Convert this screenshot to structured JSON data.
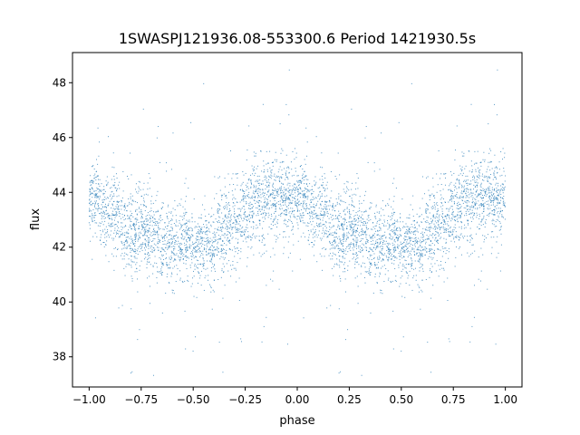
{
  "chart_data": {
    "type": "scatter",
    "title": "1SWASPJ121936.08-553300.6 Period 1421930.5s",
    "xlabel": "phase",
    "ylabel": "flux",
    "xlim": [
      -1.08,
      1.08
    ],
    "ylim": [
      36.9,
      49.1
    ],
    "xticks": [
      -1.0,
      -0.75,
      -0.5,
      -0.25,
      0.0,
      0.25,
      0.5,
      0.75,
      1.0
    ],
    "xtick_labels": [
      "−1.00",
      "−0.75",
      "−0.50",
      "−0.25",
      "0.00",
      "0.25",
      "0.50",
      "0.75",
      "1.00"
    ],
    "yticks": [
      38,
      40,
      42,
      44,
      46,
      48
    ],
    "ytick_labels": [
      "38",
      "40",
      "42",
      "44",
      "46",
      "48"
    ],
    "grid": false,
    "point_color": "#1f77b4",
    "marker": "dot",
    "series_symmetry": "phase-folded, repeats over [-1, 0] and [0, 1]",
    "trend": {
      "phase": [
        0.0,
        0.05,
        0.1,
        0.15,
        0.2,
        0.25,
        0.3,
        0.35,
        0.4,
        0.45,
        0.5,
        0.55,
        0.6,
        0.65,
        0.7,
        0.75,
        0.8,
        0.85,
        0.9,
        0.95,
        1.0
      ],
      "flux": [
        43.7,
        43.5,
        43.2,
        42.9,
        42.6,
        42.5,
        42.4,
        42.3,
        42.2,
        42.1,
        42.0,
        42.1,
        42.3,
        42.6,
        42.9,
        43.2,
        43.5,
        43.8,
        43.9,
        43.9,
        43.7
      ]
    }
  }
}
